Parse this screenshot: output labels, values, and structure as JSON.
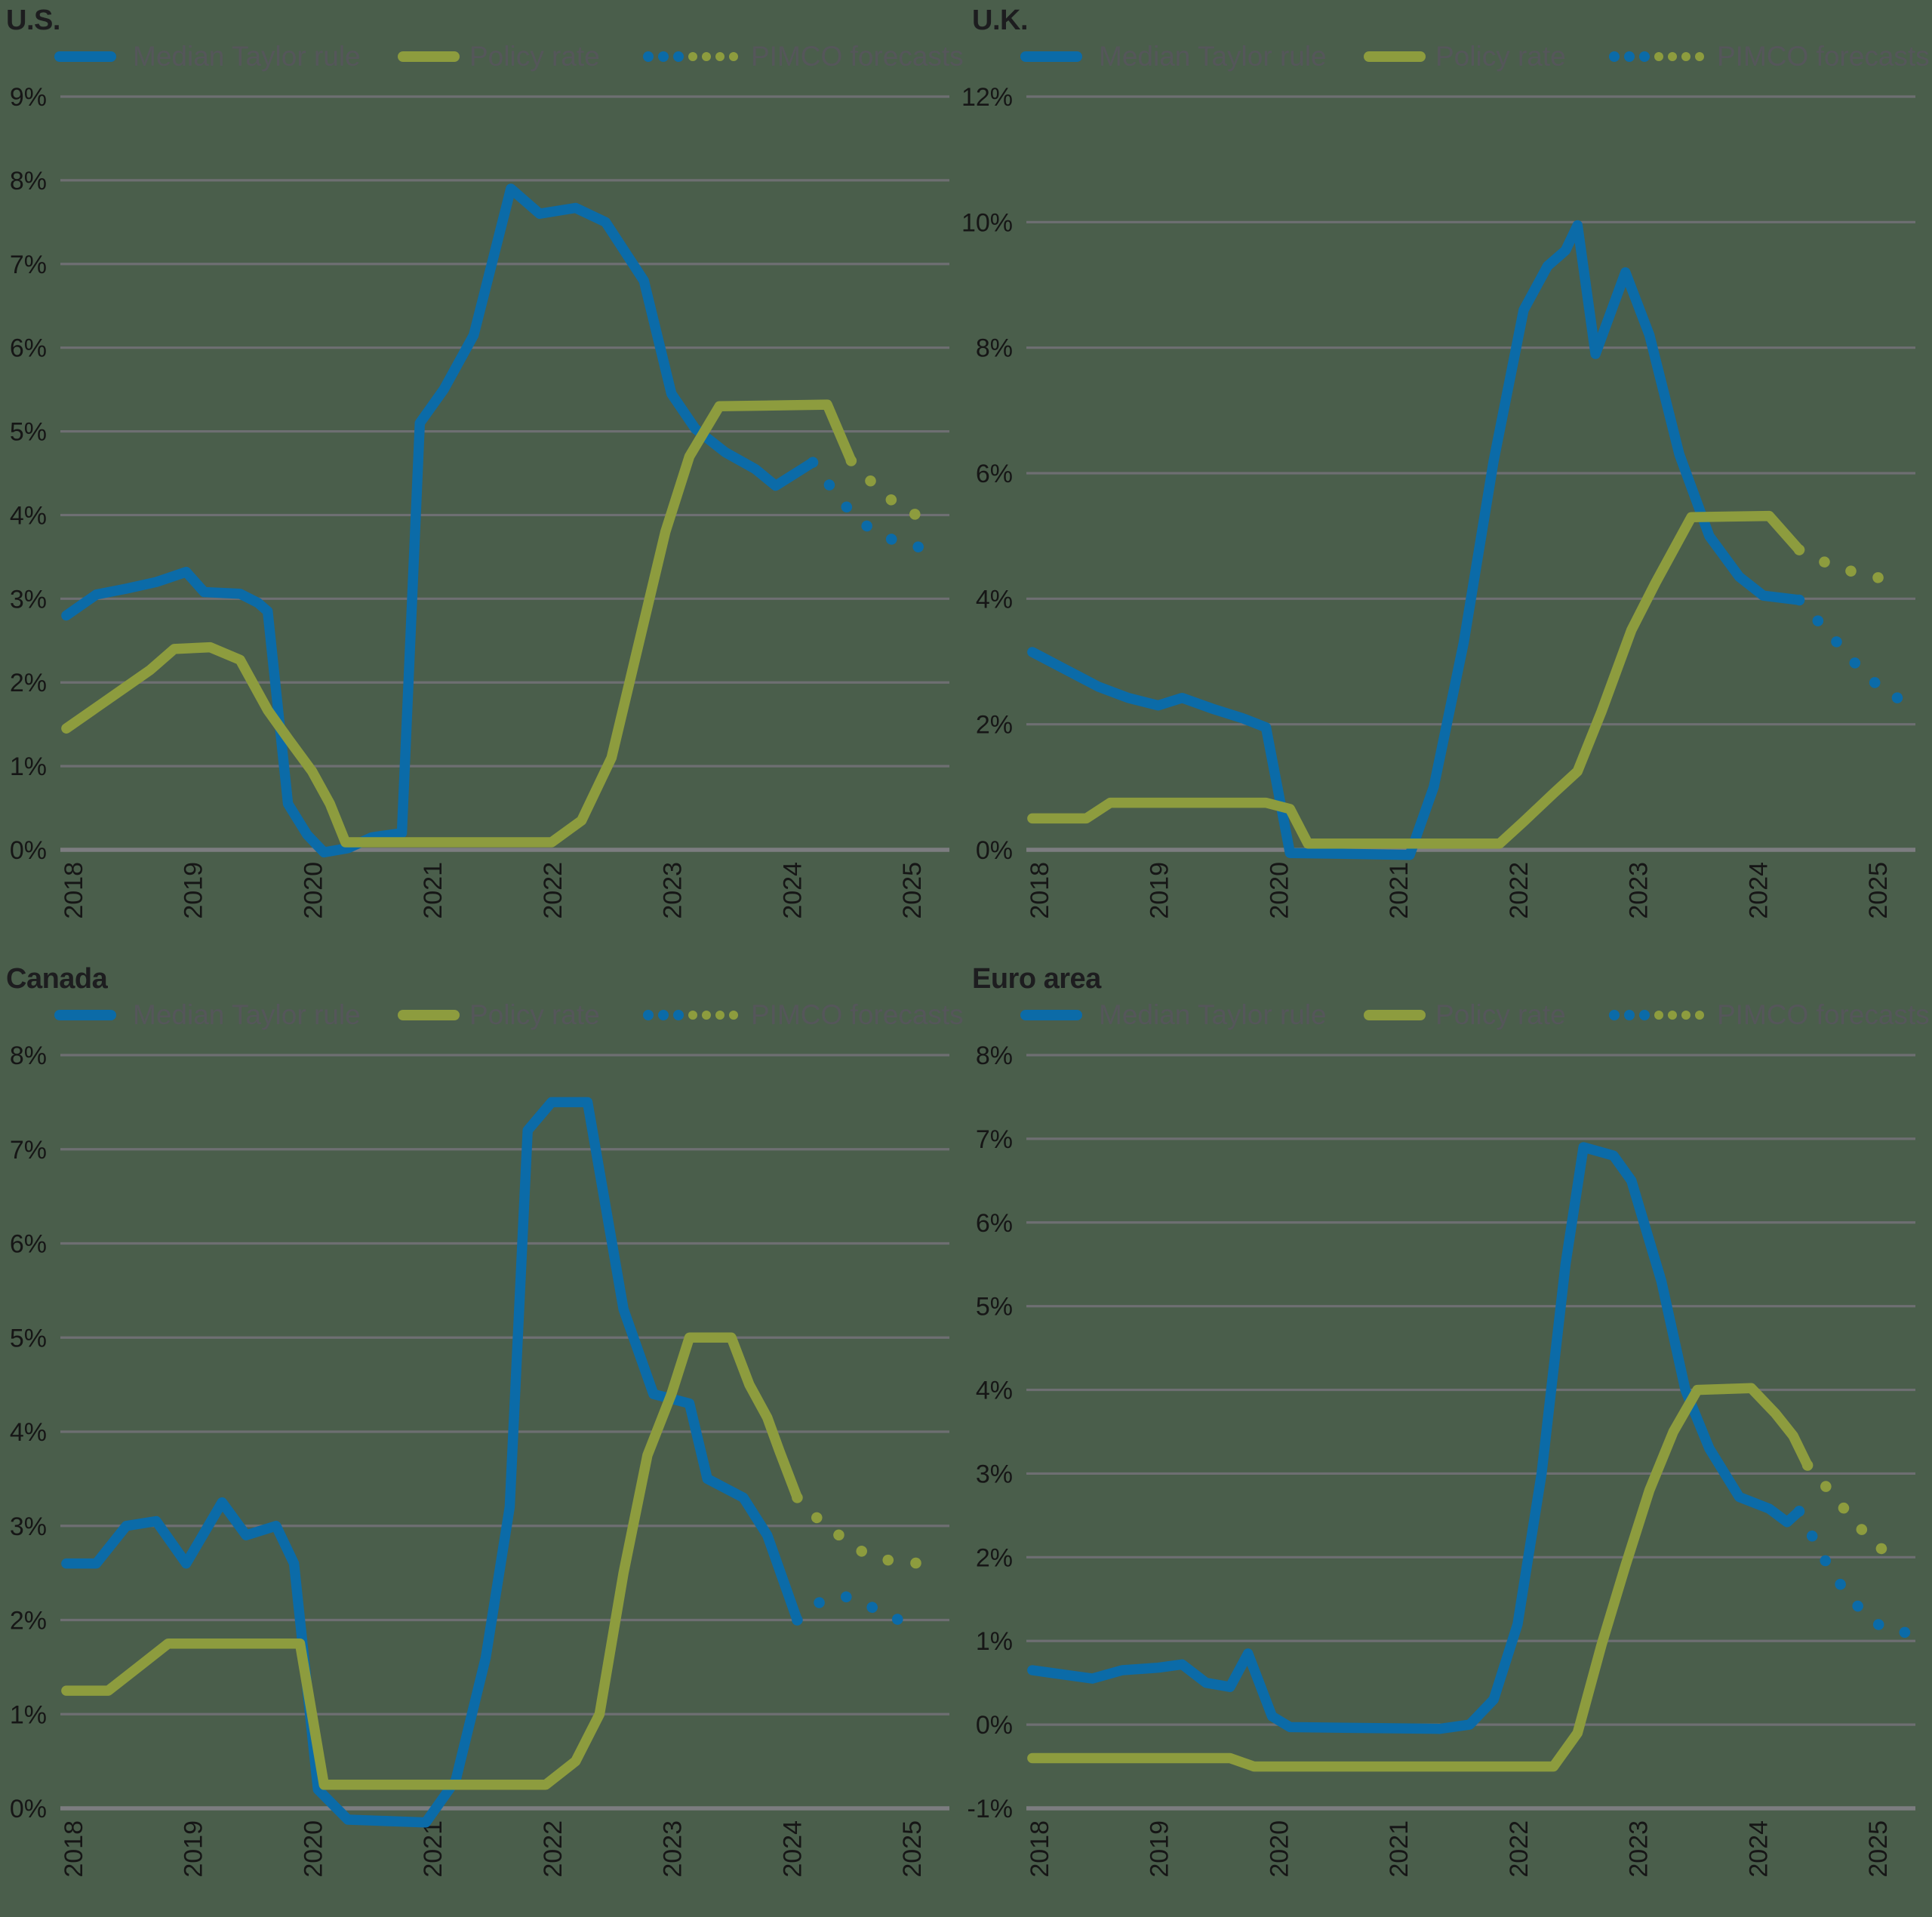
{
  "page_background": "#4a5e4b",
  "colors": {
    "taylor": "#0b6ba8",
    "policy": "#8d9c3e",
    "grid": "#6e6f72",
    "baseline": "#7c7d80",
    "axis_text": "#161616",
    "legend_text": "#55565a",
    "title_text": "#1d1d1f"
  },
  "legend": {
    "taylor": "Median Taylor rule",
    "policy": "Policy rate",
    "forecast": "PIMCO forecasts"
  },
  "axis": {
    "x_ticks": [
      2018,
      2019,
      2020,
      2021,
      2022,
      2023,
      2024,
      2025
    ],
    "x_min": 2017.9,
    "x_max": 2025.32,
    "y_label_suffix": "%"
  },
  "chart_data": [
    {
      "type": "line",
      "title": "U.S.",
      "ylim": [
        0,
        9
      ],
      "y_tick_step": 1,
      "grid": true,
      "legend_position": "top",
      "series": [
        {
          "name": "Median Taylor rule",
          "color": "taylor",
          "style": "solid",
          "points": [
            [
              2017.95,
              2.8
            ],
            [
              2018.2,
              3.05
            ],
            [
              2018.45,
              3.12
            ],
            [
              2018.7,
              3.2
            ],
            [
              2018.95,
              3.32
            ],
            [
              2019.1,
              3.08
            ],
            [
              2019.4,
              3.06
            ],
            [
              2019.55,
              2.95
            ],
            [
              2019.63,
              2.85
            ],
            [
              2019.8,
              0.55
            ],
            [
              2019.96,
              0.18
            ],
            [
              2020.1,
              -0.03
            ],
            [
              2020.3,
              0.02
            ],
            [
              2020.5,
              0.15
            ],
            [
              2020.75,
              0.2
            ],
            [
              2020.9,
              5.1
            ],
            [
              2021.1,
              5.5
            ],
            [
              2021.35,
              6.15
            ],
            [
              2021.66,
              7.9
            ],
            [
              2021.9,
              7.6
            ],
            [
              2022.2,
              7.67
            ],
            [
              2022.45,
              7.5
            ],
            [
              2022.77,
              6.8
            ],
            [
              2023.0,
              5.45
            ],
            [
              2023.2,
              5.03
            ],
            [
              2023.45,
              4.75
            ],
            [
              2023.7,
              4.55
            ],
            [
              2023.87,
              4.35
            ],
            [
              2024.18,
              4.63
            ]
          ]
        },
        {
          "name": "Median Taylor rule (PIMCO forecast)",
          "color": "taylor",
          "style": "dotted",
          "points": [
            [
              2024.18,
              4.63
            ],
            [
              2024.4,
              4.2
            ],
            [
              2024.55,
              3.95
            ],
            [
              2024.7,
              3.8
            ],
            [
              2024.9,
              3.67
            ],
            [
              2025.12,
              3.6
            ]
          ]
        },
        {
          "name": "Policy rate",
          "color": "policy",
          "style": "solid",
          "points": [
            [
              2017.95,
              1.45
            ],
            [
              2018.2,
              1.7
            ],
            [
              2018.45,
              1.95
            ],
            [
              2018.65,
              2.15
            ],
            [
              2018.85,
              2.4
            ],
            [
              2019.15,
              2.42
            ],
            [
              2019.4,
              2.27
            ],
            [
              2019.63,
              1.67
            ],
            [
              2019.8,
              1.33
            ],
            [
              2020.0,
              0.94
            ],
            [
              2020.15,
              0.55
            ],
            [
              2020.28,
              0.09
            ],
            [
              2022.0,
              0.09
            ],
            [
              2022.25,
              0.35
            ],
            [
              2022.5,
              1.1
            ],
            [
              2022.7,
              2.3
            ],
            [
              2022.95,
              3.8
            ],
            [
              2023.15,
              4.7
            ],
            [
              2023.4,
              5.3
            ],
            [
              2024.3,
              5.32
            ],
            [
              2024.5,
              4.65
            ]
          ]
        },
        {
          "name": "Policy rate (PIMCO forecast)",
          "color": "policy",
          "style": "dotted",
          "points": [
            [
              2024.5,
              4.65
            ],
            [
              2024.7,
              4.35
            ],
            [
              2024.9,
              4.1
            ],
            [
              2025.12,
              3.95
            ]
          ]
        }
      ]
    },
    {
      "type": "line",
      "title": "U.K.",
      "ylim": [
        0,
        12
      ],
      "y_tick_step": 2,
      "grid": true,
      "legend_position": "top",
      "series": [
        {
          "name": "Median Taylor rule",
          "color": "taylor",
          "style": "solid",
          "points": [
            [
              2017.95,
              3.15
            ],
            [
              2018.2,
              2.9
            ],
            [
              2018.5,
              2.6
            ],
            [
              2018.75,
              2.42
            ],
            [
              2019.0,
              2.3
            ],
            [
              2019.2,
              2.42
            ],
            [
              2019.45,
              2.25
            ],
            [
              2019.7,
              2.1
            ],
            [
              2019.9,
              1.95
            ],
            [
              2020.1,
              -0.05
            ],
            [
              2021.1,
              -0.08
            ],
            [
              2021.3,
              1.0
            ],
            [
              2021.55,
              3.3
            ],
            [
              2021.8,
              6.2
            ],
            [
              2022.05,
              8.6
            ],
            [
              2022.25,
              9.3
            ],
            [
              2022.4,
              9.55
            ],
            [
              2022.5,
              9.95
            ],
            [
              2022.65,
              7.9
            ],
            [
              2022.9,
              9.2
            ],
            [
              2023.1,
              8.2
            ],
            [
              2023.35,
              6.3
            ],
            [
              2023.6,
              5.0
            ],
            [
              2023.85,
              4.35
            ],
            [
              2024.05,
              4.05
            ],
            [
              2024.35,
              3.98
            ]
          ]
        },
        {
          "name": "Median Taylor rule (PIMCO forecast)",
          "color": "taylor",
          "style": "dotted",
          "points": [
            [
              2024.35,
              3.98
            ],
            [
              2024.6,
              3.45
            ],
            [
              2024.85,
              2.9
            ],
            [
              2025.1,
              2.45
            ],
            [
              2025.22,
              2.4
            ]
          ]
        },
        {
          "name": "Policy rate",
          "color": "policy",
          "style": "solid",
          "points": [
            [
              2017.95,
              0.5
            ],
            [
              2018.4,
              0.5
            ],
            [
              2018.6,
              0.75
            ],
            [
              2019.9,
              0.75
            ],
            [
              2020.1,
              0.65
            ],
            [
              2020.25,
              0.1
            ],
            [
              2021.85,
              0.1
            ],
            [
              2022.05,
              0.45
            ],
            [
              2022.3,
              0.9
            ],
            [
              2022.5,
              1.25
            ],
            [
              2022.7,
              2.2
            ],
            [
              2022.95,
              3.5
            ],
            [
              2023.15,
              4.25
            ],
            [
              2023.45,
              5.3
            ],
            [
              2024.1,
              5.32
            ],
            [
              2024.35,
              4.78
            ]
          ]
        },
        {
          "name": "Policy rate (PIMCO forecast)",
          "color": "policy",
          "style": "dotted",
          "points": [
            [
              2024.35,
              4.78
            ],
            [
              2024.6,
              4.55
            ],
            [
              2024.85,
              4.4
            ],
            [
              2025.1,
              4.3
            ],
            [
              2025.22,
              4.28
            ]
          ]
        }
      ]
    },
    {
      "type": "line",
      "title": "Canada",
      "ylim": [
        0,
        8
      ],
      "y_tick_step": 1,
      "grid": true,
      "legend_position": "top",
      "series": [
        {
          "name": "Median Taylor rule",
          "color": "taylor",
          "style": "solid",
          "points": [
            [
              2017.95,
              2.6
            ],
            [
              2018.2,
              2.6
            ],
            [
              2018.45,
              3.0
            ],
            [
              2018.7,
              3.05
            ],
            [
              2018.95,
              2.6
            ],
            [
              2019.25,
              3.25
            ],
            [
              2019.45,
              2.9
            ],
            [
              2019.7,
              3.0
            ],
            [
              2019.85,
              2.6
            ],
            [
              2020.05,
              0.2
            ],
            [
              2020.3,
              -0.12
            ],
            [
              2020.95,
              -0.15
            ],
            [
              2021.2,
              0.3
            ],
            [
              2021.45,
              1.6
            ],
            [
              2021.65,
              3.2
            ],
            [
              2021.8,
              7.2
            ],
            [
              2022.0,
              7.5
            ],
            [
              2022.3,
              7.5
            ],
            [
              2022.6,
              5.3
            ],
            [
              2022.85,
              4.4
            ],
            [
              2023.15,
              4.3
            ],
            [
              2023.3,
              3.5
            ],
            [
              2023.6,
              3.3
            ],
            [
              2023.8,
              2.9
            ],
            [
              2024.05,
              2.0
            ]
          ]
        },
        {
          "name": "Median Taylor rule (PIMCO forecast)",
          "color": "taylor",
          "style": "dotted",
          "points": [
            [
              2024.05,
              2.0
            ],
            [
              2024.25,
              2.2
            ],
            [
              2024.45,
              2.25
            ],
            [
              2024.65,
              2.15
            ],
            [
              2024.9,
              2.0
            ],
            [
              2025.1,
              2.0
            ]
          ]
        },
        {
          "name": "Policy rate",
          "color": "policy",
          "style": "solid",
          "points": [
            [
              2017.95,
              1.25
            ],
            [
              2018.3,
              1.25
            ],
            [
              2018.55,
              1.5
            ],
            [
              2018.8,
              1.75
            ],
            [
              2019.9,
              1.75
            ],
            [
              2020.1,
              0.25
            ],
            [
              2021.95,
              0.25
            ],
            [
              2022.2,
              0.5
            ],
            [
              2022.4,
              1.0
            ],
            [
              2022.6,
              2.5
            ],
            [
              2022.8,
              3.75
            ],
            [
              2023.0,
              4.4
            ],
            [
              2023.15,
              5.0
            ],
            [
              2023.5,
              5.0
            ],
            [
              2023.65,
              4.5
            ],
            [
              2023.8,
              4.15
            ],
            [
              2023.9,
              3.8
            ],
            [
              2024.05,
              3.3
            ]
          ]
        },
        {
          "name": "Policy rate (PIMCO forecast)",
          "color": "policy",
          "style": "dotted",
          "points": [
            [
              2024.05,
              3.3
            ],
            [
              2024.2,
              3.1
            ],
            [
              2024.4,
              2.9
            ],
            [
              2024.6,
              2.72
            ],
            [
              2024.85,
              2.62
            ],
            [
              2025.1,
              2.6
            ]
          ]
        }
      ]
    },
    {
      "type": "line",
      "title": "Euro area",
      "ylim": [
        -1,
        8
      ],
      "y_tick_step": 1,
      "grid": true,
      "legend_position": "top",
      "series": [
        {
          "name": "Median Taylor rule",
          "color": "taylor",
          "style": "solid",
          "points": [
            [
              2017.95,
              0.65
            ],
            [
              2018.2,
              0.6
            ],
            [
              2018.45,
              0.55
            ],
            [
              2018.7,
              0.65
            ],
            [
              2019.0,
              0.68
            ],
            [
              2019.2,
              0.72
            ],
            [
              2019.4,
              0.5
            ],
            [
              2019.6,
              0.45
            ],
            [
              2019.75,
              0.85
            ],
            [
              2019.95,
              0.1
            ],
            [
              2020.1,
              -0.03
            ],
            [
              2021.35,
              -0.05
            ],
            [
              2021.6,
              0.0
            ],
            [
              2021.8,
              0.3
            ],
            [
              2022.0,
              1.2
            ],
            [
              2022.2,
              3.0
            ],
            [
              2022.4,
              5.5
            ],
            [
              2022.55,
              6.9
            ],
            [
              2022.8,
              6.8
            ],
            [
              2022.95,
              6.5
            ],
            [
              2023.2,
              5.3
            ],
            [
              2023.4,
              4.0
            ],
            [
              2023.6,
              3.3
            ],
            [
              2023.85,
              2.72
            ],
            [
              2024.1,
              2.58
            ],
            [
              2024.25,
              2.42
            ],
            [
              2024.35,
              2.55
            ]
          ]
        },
        {
          "name": "Median Taylor rule (PIMCO forecast)",
          "color": "taylor",
          "style": "dotted",
          "points": [
            [
              2024.35,
              2.55
            ],
            [
              2024.55,
              2.0
            ],
            [
              2024.75,
              1.55
            ],
            [
              2024.95,
              1.25
            ],
            [
              2025.1,
              1.12
            ],
            [
              2025.25,
              1.1
            ]
          ]
        },
        {
          "name": "Policy rate",
          "color": "policy",
          "style": "solid",
          "points": [
            [
              2017.95,
              -0.4
            ],
            [
              2019.6,
              -0.4
            ],
            [
              2019.8,
              -0.5
            ],
            [
              2022.3,
              -0.5
            ],
            [
              2022.5,
              -0.1
            ],
            [
              2022.7,
              0.95
            ],
            [
              2022.9,
              1.9
            ],
            [
              2023.1,
              2.8
            ],
            [
              2023.3,
              3.5
            ],
            [
              2023.5,
              4.0
            ],
            [
              2023.95,
              4.02
            ],
            [
              2024.15,
              3.72
            ],
            [
              2024.3,
              3.45
            ],
            [
              2024.42,
              3.1
            ]
          ]
        },
        {
          "name": "Policy rate (PIMCO forecast)",
          "color": "policy",
          "style": "dotted",
          "points": [
            [
              2024.42,
              3.1
            ],
            [
              2024.6,
              2.8
            ],
            [
              2024.8,
              2.45
            ],
            [
              2025.0,
              2.12
            ],
            [
              2025.25,
              2.0
            ]
          ]
        }
      ]
    }
  ]
}
